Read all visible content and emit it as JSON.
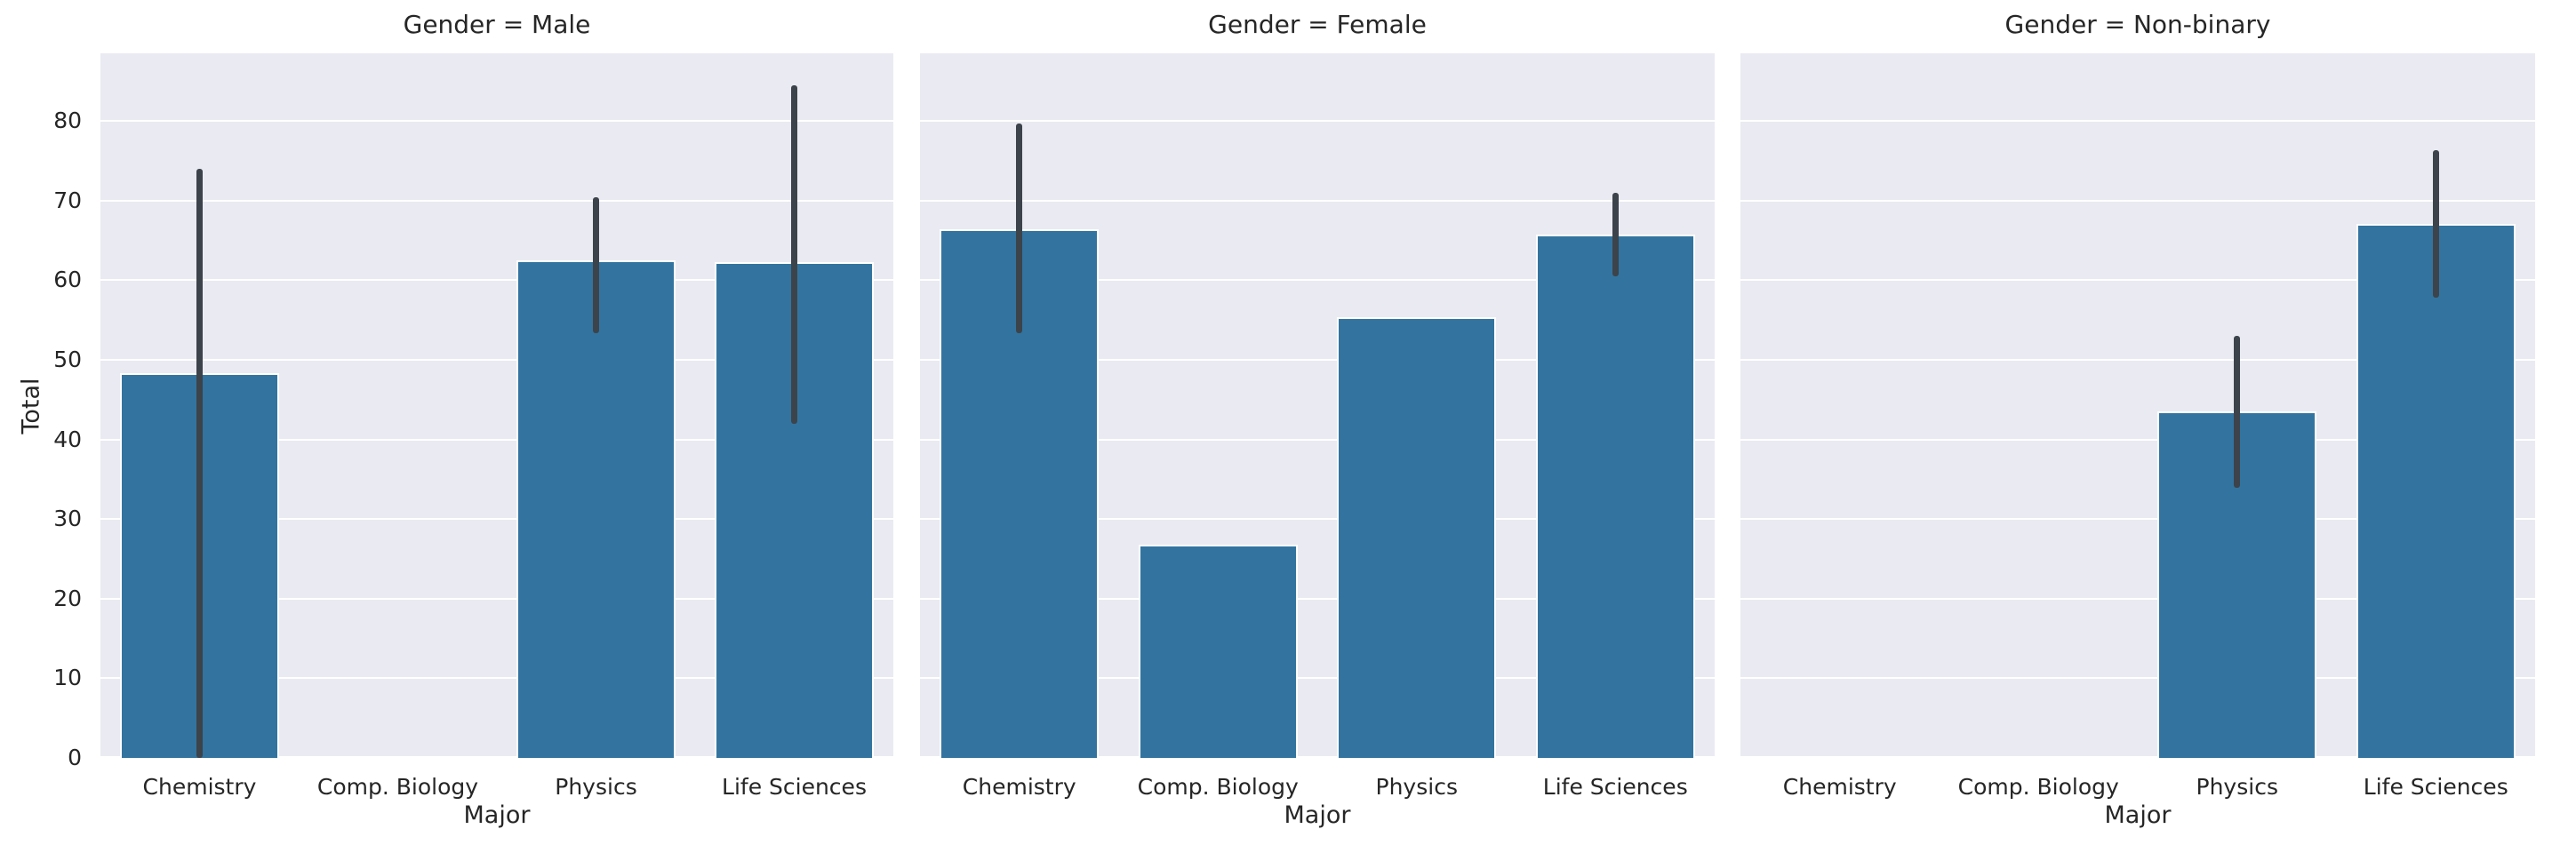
{
  "chart_data": {
    "type": "bar",
    "facet_variable": "Gender",
    "xlabel": "Major",
    "ylabel": "Total",
    "categories": [
      "Chemistry",
      "Comp. Biology",
      "Physics",
      "Life Sciences"
    ],
    "yticks": [
      0,
      10,
      20,
      30,
      40,
      50,
      60,
      70,
      80
    ],
    "ylim": [
      0,
      88.5
    ],
    "grid": true,
    "legend": "none",
    "facets": [
      {
        "title": "Gender = Male",
        "bars": [
          {
            "category": "Chemistry",
            "value": 48.3,
            "ci": [
              0,
              74.0
            ]
          },
          {
            "category": "Comp. Biology",
            "value": null,
            "ci": null
          },
          {
            "category": "Physics",
            "value": 62.5,
            "ci": [
              53.3,
              70.4
            ]
          },
          {
            "category": "Life Sciences",
            "value": 62.3,
            "ci": [
              42.0,
              84.5
            ]
          }
        ]
      },
      {
        "title": "Gender = Female",
        "bars": [
          {
            "category": "Chemistry",
            "value": 66.4,
            "ci": [
              53.4,
              79.7
            ]
          },
          {
            "category": "Comp. Biology",
            "value": 26.8,
            "ci": null
          },
          {
            "category": "Physics",
            "value": 55.4,
            "ci": null
          },
          {
            "category": "Life Sciences",
            "value": 65.7,
            "ci": [
              60.5,
              71.0
            ]
          }
        ]
      },
      {
        "title": "Gender = Non-binary",
        "bars": [
          {
            "category": "Chemistry",
            "value": null,
            "ci": null
          },
          {
            "category": "Comp. Biology",
            "value": null,
            "ci": null
          },
          {
            "category": "Physics",
            "value": 43.5,
            "ci": [
              33.9,
              53.0
            ]
          },
          {
            "category": "Life Sciences",
            "value": 67.1,
            "ci": [
              57.8,
              76.3
            ]
          }
        ]
      }
    ],
    "colors": {
      "bar": "#32749f",
      "bar_edge": "#ffffff",
      "error_bar": "#3d434a",
      "axes_background": "#eaeaf2",
      "gridline": "#ffffff",
      "text": "#262626",
      "figure_background": "#ffffff"
    }
  }
}
